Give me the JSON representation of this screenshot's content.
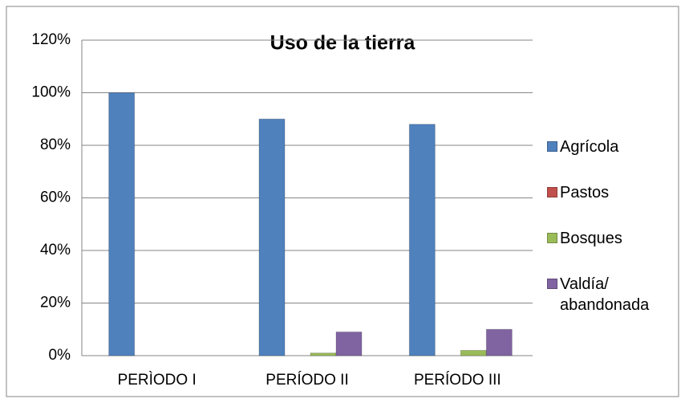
{
  "chart_data": {
    "type": "bar",
    "title": "Uso de la tierra",
    "categories": [
      "PERÌODO I",
      "PERÍODO II",
      "PERÍODO III"
    ],
    "series": [
      {
        "name": "Agrícola",
        "color": "#4f81bd",
        "values": [
          100,
          90,
          88
        ]
      },
      {
        "name": "Pastos",
        "color": "#c0504d",
        "values": [
          0,
          0,
          0
        ]
      },
      {
        "name": "Bosques",
        "color": "#9bbb59",
        "values": [
          0,
          1,
          2
        ]
      },
      {
        "name": "Valdía/ abandonada",
        "color": "#8064a2",
        "values": [
          0,
          9,
          10
        ]
      }
    ],
    "ylim": [
      0,
      120
    ],
    "yticks": [
      {
        "value": 0,
        "label": "0%"
      },
      {
        "value": 20,
        "label": "20%"
      },
      {
        "value": 40,
        "label": "40%"
      },
      {
        "value": 60,
        "label": "60%"
      },
      {
        "value": 80,
        "label": "80%"
      },
      {
        "value": 100,
        "label": "100%"
      },
      {
        "value": 120,
        "label": "120%"
      }
    ],
    "grid": true,
    "legend": "right"
  }
}
